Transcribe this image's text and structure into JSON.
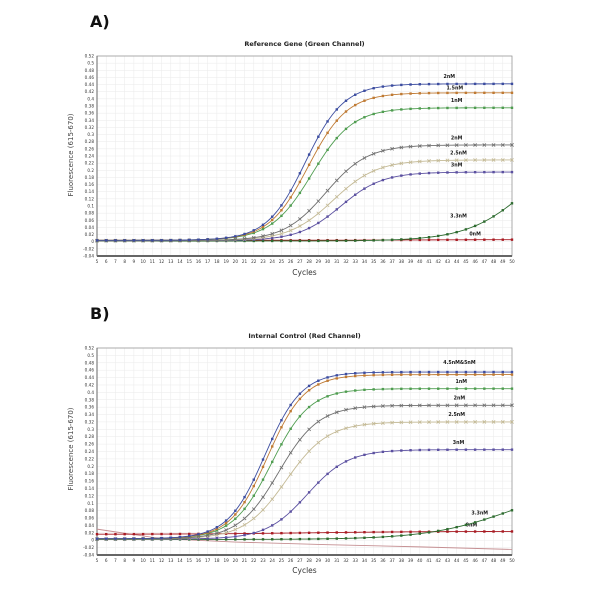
{
  "figure": {
    "background": "#ffffff",
    "panels": [
      {
        "letter": "A)",
        "title": "Reference Gene (Green Channel)",
        "ylabel": "Fluorescence (615-670)",
        "xlabel": "Cycles"
      },
      {
        "letter": "B)",
        "title": "Internal Control (Red Channel)",
        "ylabel": "Fluorescence (615-670)",
        "xlabel": "Cycles"
      }
    ]
  },
  "chart_data": [
    {
      "type": "line",
      "title": "Reference Gene (Green Channel)",
      "xlabel": "Cycles",
      "ylabel": "Fluorescence (615-670)",
      "xlim": [
        5,
        50
      ],
      "x_tick_step": 1,
      "ylim": [
        -0.04,
        0.52
      ],
      "y_tick_step": 0.02,
      "grid": true,
      "legend": "curve labels at right side of each trace",
      "series": [
        {
          "label": "2nM",
          "color": "#3c4da0",
          "marker": "square",
          "baseline": 0.004,
          "plateau": 0.442,
          "mid_cycle": 27.6,
          "slope": 0.48,
          "label_cycle": 43.2
        },
        {
          "label": "1.5nM",
          "color": "#bf7a33",
          "marker": "square",
          "baseline": 0.004,
          "plateau": 0.417,
          "mid_cycle": 27.9,
          "slope": 0.47,
          "label_cycle": 43.8,
          "label_dy": 0.01
        },
        {
          "label": "1nM",
          "color": "#4f9d50",
          "marker": "square",
          "baseline": 0.004,
          "plateau": 0.375,
          "mid_cycle": 28.3,
          "slope": 0.45,
          "label_cycle": 44.0
        },
        {
          "label": "2nM",
          "color": "#6f6f6f",
          "marker": "x",
          "baseline": 0.003,
          "plateau": 0.271,
          "mid_cycle": 29.8,
          "slope": 0.44,
          "label_cycle": 44.0
        },
        {
          "label": "2.5nM",
          "color": "#c4ba96",
          "marker": "x",
          "baseline": 0.003,
          "plateau": 0.229,
          "mid_cycle": 30.6,
          "slope": 0.42,
          "label_cycle": 44.2
        },
        {
          "label": "3nM",
          "color": "#5b50a0",
          "marker": "square",
          "baseline": 0.003,
          "plateau": 0.195,
          "mid_cycle": 31.4,
          "slope": 0.44,
          "label_cycle": 44.0
        },
        {
          "label": "3.3nM",
          "color": "#2d6b2f",
          "marker": "square",
          "baseline": 0.002,
          "plateau": 0.3,
          "mid_cycle": 52.0,
          "slope": 0.3,
          "label_cycle": 44.2,
          "label_dy": 0.04
        },
        {
          "label": "0nM",
          "color": "#a81a22",
          "marker": "square",
          "baseline": 0.004,
          "plateau": 0.006,
          "mid_cycle": 40.0,
          "slope": 0.2,
          "label_cycle": 46.0,
          "label_dy": 0.012
        }
      ]
    },
    {
      "type": "line",
      "title": "Internal Control (Red Channel)",
      "xlabel": "Cycles",
      "ylabel": "Fluorescence (615-670)",
      "xlim": [
        5,
        50
      ],
      "x_tick_step": 1,
      "ylim": [
        -0.04,
        0.52
      ],
      "y_tick_step": 0.02,
      "grid": true,
      "legend": "curve labels at right side of each trace",
      "series": [
        {
          "label": "4.5nM&5nM",
          "color": "#3c4da0",
          "marker": "square",
          "baseline": 0.004,
          "plateau": 0.455,
          "mid_cycle": 23.2,
          "slope": 0.5,
          "label_cycle": 44.3,
          "label_dy": 0.022
        },
        {
          "label": "",
          "color": "#bf7a33",
          "marker": "square",
          "baseline": 0.004,
          "plateau": 0.448,
          "mid_cycle": 23.5,
          "slope": 0.5
        },
        {
          "label": "1nM",
          "color": "#4f9d50",
          "marker": "square",
          "baseline": 0.004,
          "plateau": 0.41,
          "mid_cycle": 23.9,
          "slope": 0.48,
          "label_cycle": 44.5
        },
        {
          "label": "2nM",
          "color": "#6f6f6f",
          "marker": "x",
          "baseline": 0.003,
          "plateau": 0.365,
          "mid_cycle": 24.7,
          "slope": 0.46,
          "label_cycle": 44.3
        },
        {
          "label": "2.5nM",
          "color": "#c4ba96",
          "marker": "x",
          "baseline": 0.003,
          "plateau": 0.32,
          "mid_cycle": 25.5,
          "slope": 0.44,
          "label_cycle": 44.0
        },
        {
          "label": "3nM",
          "color": "#5b50a0",
          "marker": "square",
          "baseline": 0.003,
          "plateau": 0.245,
          "mid_cycle": 27.8,
          "slope": 0.45,
          "label_cycle": 44.2
        },
        {
          "label": "3.3nM",
          "color": "#2d6b2f",
          "marker": "square",
          "baseline": 0.002,
          "plateau": 0.16,
          "mid_cycle": 50.0,
          "slope": 0.22,
          "label_cycle": 46.5,
          "label_dy": 0.018
        },
        {
          "label": "0nM",
          "color": "#a81a22",
          "marker": "square",
          "baseline": 0.016,
          "plateau": 0.024,
          "mid_cycle": 28.0,
          "slope": 0.15,
          "label_cycle": 45.6,
          "label_dy": 0.013
        },
        {
          "label": "",
          "color": "#c58f92",
          "marker": "none",
          "points": [
            [
              5,
              0.03
            ],
            [
              12,
              0.004
            ],
            [
              20,
              -0.005
            ],
            [
              30,
              -0.012
            ],
            [
              40,
              -0.018
            ],
            [
              50,
              -0.025
            ]
          ]
        }
      ]
    }
  ]
}
